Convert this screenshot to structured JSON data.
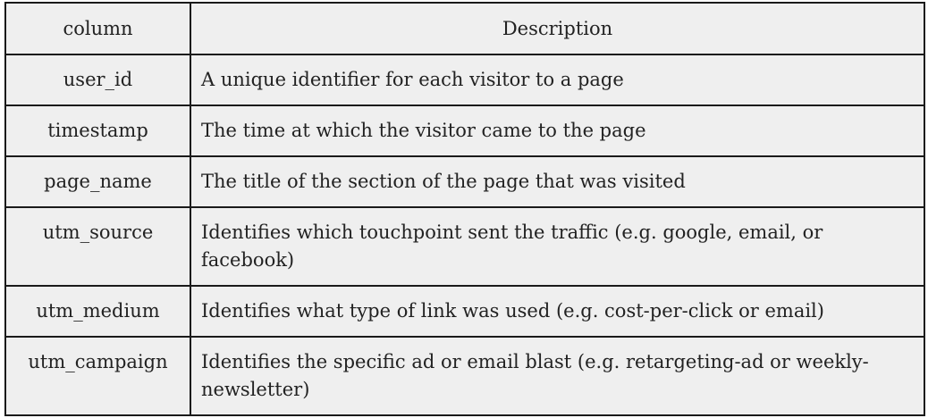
{
  "table": {
    "headers": [
      "column",
      "Description"
    ],
    "rows": [
      {
        "column": "user_id",
        "description": "A unique identifier for each visitor to a page"
      },
      {
        "column": "timestamp",
        "description": "The time at which the visitor came to the page"
      },
      {
        "column": "page_name",
        "description": "The title of the section of the page that was visited"
      },
      {
        "column": "utm_source",
        "description": "Identifies which touchpoint sent the traffic (e.g. google, email, or facebook)"
      },
      {
        "column": "utm_medium",
        "description": "Identifies what type of link was used (e.g. cost-per-click or email)"
      },
      {
        "column": "utm_campaign",
        "description": "Identifies the specific ad or email blast (e.g. retargeting-ad or weekly-newsletter)"
      }
    ]
  }
}
